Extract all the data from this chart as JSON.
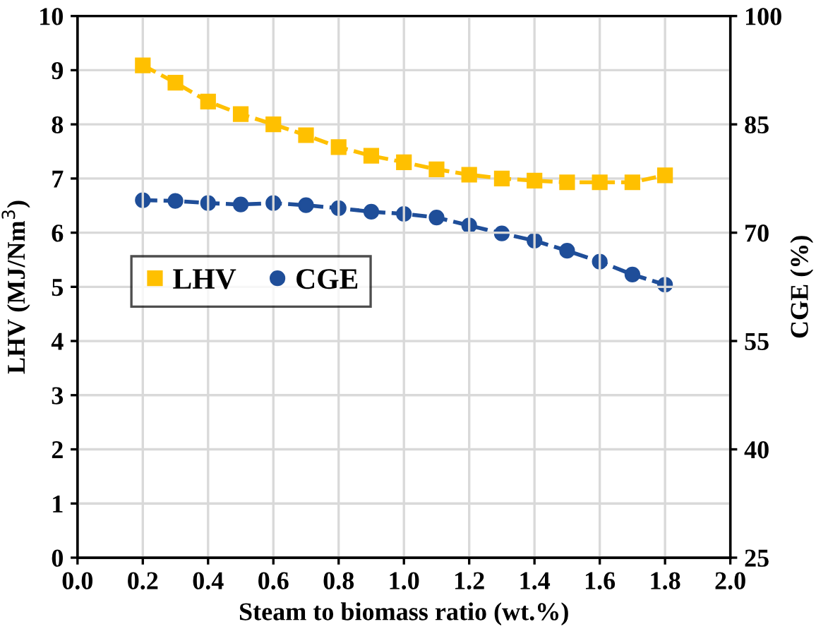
{
  "chart_data": {
    "type": "line",
    "xlabel": "Steam to biomass ratio (wt.%)",
    "ylabel": "LHV (MJ/Nm$^{3}$)",
    "y2label": "CGE (%)",
    "x": [
      0.2,
      0.3,
      0.4,
      0.5,
      0.6,
      0.7,
      0.8,
      0.9,
      1.0,
      1.1,
      1.2,
      1.3,
      1.4,
      1.5,
      1.6,
      1.7,
      1.8
    ],
    "series": [
      {
        "name": "LHV",
        "color": "#ffc000",
        "marker": "square",
        "values": [
          9.09,
          8.77,
          8.42,
          8.19,
          8.0,
          7.8,
          7.58,
          7.42,
          7.3,
          7.17,
          7.07,
          7.0,
          6.96,
          6.93,
          6.93,
          6.93,
          7.06
        ]
      },
      {
        "name": "CGE",
        "color": "#1f4e99",
        "marker": "circle",
        "axis": "y2",
        "values": [
          74.5,
          74.4,
          74.1,
          73.9,
          74.1,
          73.8,
          73.4,
          72.9,
          72.6,
          72.1,
          71.0,
          69.9,
          68.9,
          67.5,
          66.0,
          64.2,
          62.8
        ]
      }
    ],
    "xlim": [
      0.0,
      2.0
    ],
    "xticks": [
      {
        "value": 0.0,
        "label": "0.0"
      },
      {
        "value": 0.2,
        "label": "0.2"
      },
      {
        "value": 0.4,
        "label": "0.4"
      },
      {
        "value": 0.6,
        "label": "0.6"
      },
      {
        "value": 0.8,
        "label": "0.8"
      },
      {
        "value": 1.0,
        "label": "1.0"
      },
      {
        "value": 1.2,
        "label": "1.2"
      },
      {
        "value": 1.4,
        "label": "1.4"
      },
      {
        "value": 1.6,
        "label": "1.6"
      },
      {
        "value": 1.8,
        "label": "1.8"
      },
      {
        "value": 2.0,
        "label": "2.0"
      }
    ],
    "ylim": [
      0,
      10
    ],
    "yticks": [
      0,
      1,
      2,
      3,
      4,
      5,
      6,
      7,
      8,
      9,
      10
    ],
    "y2lim": [
      25,
      100
    ],
    "y2ticks": [
      25,
      40,
      55,
      70,
      85,
      100
    ],
    "grid": true,
    "legend": "left",
    "line_style": "dashed"
  }
}
